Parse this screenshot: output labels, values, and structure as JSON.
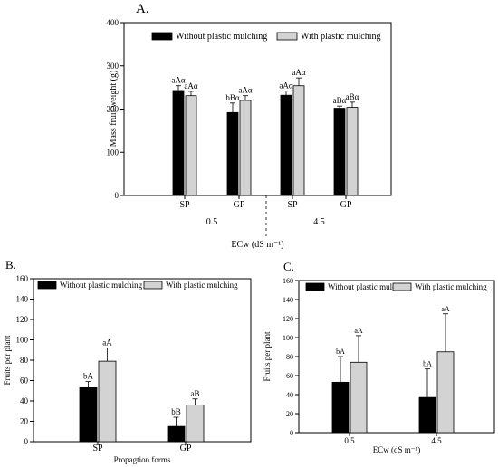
{
  "colors": {
    "without": "#000000",
    "with": "#d3d3d3",
    "axis": "#000000"
  },
  "chart_data": [
    {
      "panel": "A.",
      "type": "bar",
      "ylabel": "Mass fruit weight (g)",
      "xlabel": "ECw (dS m⁻¹)",
      "ylim": [
        0,
        400
      ],
      "yticks": [
        0,
        100,
        200,
        300,
        400
      ],
      "group_labels": [
        "0.5",
        "4.5"
      ],
      "categories": [
        "SP",
        "GP",
        "SP",
        "GP"
      ],
      "legend": [
        "Without plastic mulching",
        "With plastic mulching"
      ],
      "legend_position": "top",
      "series": [
        {
          "name": "Without plastic mulching",
          "values": [
            243,
            192,
            232,
            202
          ],
          "errors": [
            11,
            22,
            10,
            5
          ],
          "labels": [
            "aAα",
            "bBα",
            "aAα",
            "aBα"
          ]
        },
        {
          "name": "With plastic mulching",
          "values": [
            231,
            220,
            254,
            204
          ],
          "errors": [
            10,
            11,
            18,
            12
          ],
          "labels": [
            "aAα",
            "aAα",
            "aAα",
            "aBα"
          ]
        }
      ]
    },
    {
      "panel": "B.",
      "type": "bar",
      "ylabel": "Fruits per plant",
      "xlabel": "Propagtion forms",
      "ylim": [
        0,
        160
      ],
      "yticks": [
        0,
        20,
        40,
        60,
        80,
        100,
        120,
        140,
        160
      ],
      "categories": [
        "SP",
        "GP"
      ],
      "legend": [
        "Without plastic mulching",
        "With plastic mulching"
      ],
      "legend_position": "top",
      "series": [
        {
          "name": "Without plastic mulching",
          "values": [
            53,
            15
          ],
          "errors": [
            6,
            9
          ],
          "labels": [
            "bA",
            "bB"
          ]
        },
        {
          "name": "With plastic mulching",
          "values": [
            79,
            36
          ],
          "errors": [
            13,
            6
          ],
          "labels": [
            "aA",
            "aB"
          ]
        }
      ]
    },
    {
      "panel": "C.",
      "type": "bar",
      "ylabel": "Fruits per plant",
      "xlabel": "ECw (dS m⁻¹)",
      "ylim": [
        0,
        160
      ],
      "yticks": [
        0,
        20,
        40,
        60,
        80,
        100,
        120,
        140,
        160
      ],
      "categories": [
        "0.5",
        "4.5"
      ],
      "legend": [
        "Without plastic mulching",
        "With plastic mulching"
      ],
      "legend_position": "top",
      "series": [
        {
          "name": "Without plastic mulching",
          "values": [
            53,
            37
          ],
          "errors": [
            27,
            30
          ],
          "labels": [
            "bA",
            "bA"
          ]
        },
        {
          "name": "With plastic mulching",
          "values": [
            74,
            85
          ],
          "errors": [
            28,
            40
          ],
          "labels": [
            "aA",
            "aA"
          ]
        }
      ]
    }
  ]
}
